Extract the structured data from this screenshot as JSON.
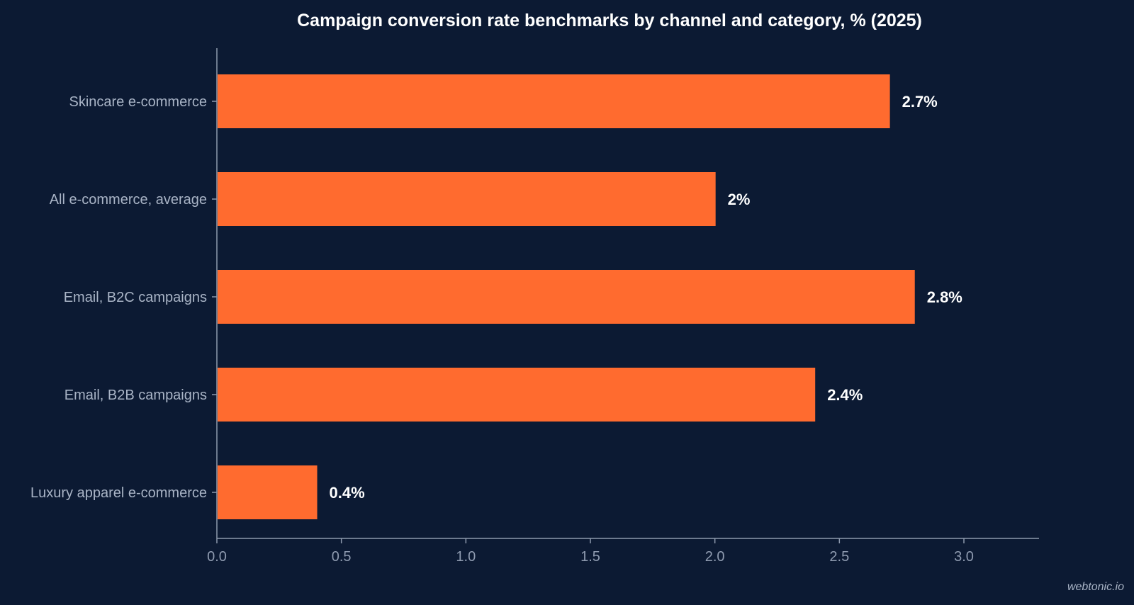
{
  "chart_data": {
    "type": "bar",
    "orientation": "horizontal",
    "title": "Campaign conversion rate benchmarks by channel and category, % (2025)",
    "categories": [
      "Skincare e-commerce",
      "All e-commerce, average",
      "Email, B2C campaigns",
      "Email, B2B campaigns",
      "Luxury apparel e-commerce"
    ],
    "values": [
      2.7,
      2.0,
      2.8,
      2.4,
      0.4
    ],
    "data_labels": [
      "2.7%",
      "2%",
      "2.8%",
      "2.4%",
      "0.4%"
    ],
    "xlabel": "",
    "ylabel": "",
    "xlim": [
      0,
      3.3
    ],
    "xticks": [
      "0.0",
      "0.5",
      "1.0",
      "1.5",
      "2.0",
      "2.5",
      "3.0"
    ],
    "grid": false,
    "colors": {
      "bar": "#ff6b2f",
      "background": "#0c1a33",
      "axis": "#8d99ad",
      "tick_label": "#8f9bb0",
      "category_label": "#a9b4c6",
      "data_label": "#ffffff",
      "title": "#ffffff"
    }
  },
  "watermark": "webtonic.io"
}
